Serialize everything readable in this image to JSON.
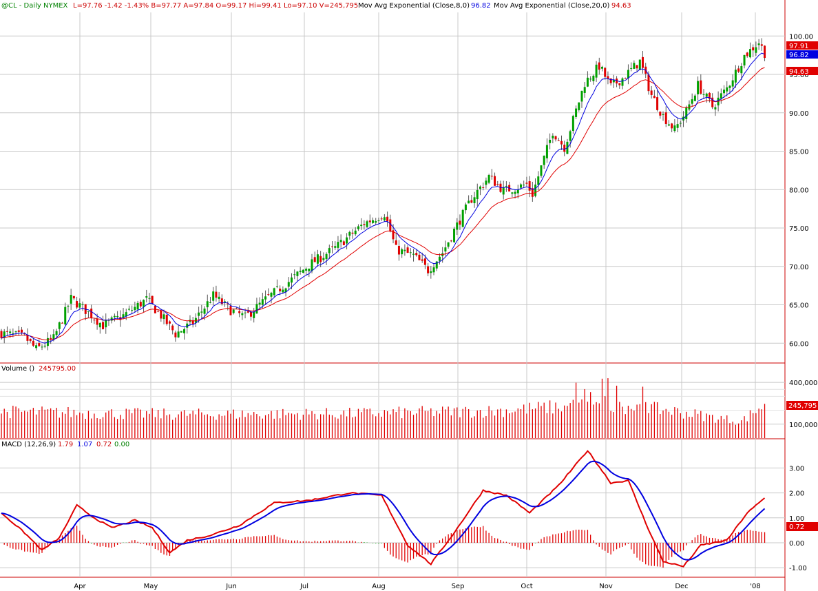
{
  "header": {
    "symbol": "@CL - Daily  NYMEX",
    "stats": "L=97.76  -1.42  -1.43%  B=97.77  A=97.84  O=99.17  Hi=99.41  Lo=97.10  V=245,795",
    "ema8_label": "Mov Avg Exponential (Close,8,0)",
    "ema8_value": "96.82",
    "ema20_label": "Mov Avg Exponential (Close,20,0)",
    "ema20_value": "94.63"
  },
  "volume_panel": {
    "label": "Volume ()",
    "value": "245795.00",
    "badge": "245,795"
  },
  "macd_panel": {
    "label": "MACD (12,26,9)",
    "values": [
      "1.79",
      "1.07",
      "0.72",
      "0.00"
    ],
    "badge": "0.72"
  },
  "price_badges": [
    "97.91",
    "96.82",
    "94.63"
  ],
  "colors": {
    "up": "#00a000",
    "down": "#e00000",
    "ema8": "#0000e0",
    "ema20": "#e00000",
    "grid": "#c8c8c8",
    "axis": "#cc0000",
    "text_green": "#008000"
  },
  "chart_data": {
    "type": "candlestick",
    "x_ticks": [
      "Apr",
      "May",
      "Jun",
      "Jul",
      "Aug",
      "Sep",
      "Oct",
      "Nov",
      "Dec",
      "'08"
    ],
    "price_axis": {
      "ticks": [
        "60.00",
        "65.00",
        "70.00",
        "75.00",
        "80.00",
        "85.00",
        "90.00",
        "95.00",
        "100.00"
      ],
      "range": [
        58.5,
        102.0
      ]
    },
    "volume_axis": {
      "ticks": [
        "100,000",
        "245,795",
        "400,000"
      ],
      "range": [
        0,
        450000
      ]
    },
    "macd_axis": {
      "ticks": [
        "-1.00",
        "0.00",
        "1.00",
        "2.00",
        "3.00"
      ],
      "range": [
        -1.3,
        3.9
      ]
    },
    "price_keyframes": [
      [
        0,
        61.3
      ],
      [
        8,
        60.8
      ],
      [
        12,
        59.2
      ],
      [
        18,
        60.6
      ],
      [
        24,
        65.8
      ],
      [
        30,
        64.0
      ],
      [
        35,
        62.3
      ],
      [
        42,
        63.6
      ],
      [
        50,
        65.7
      ],
      [
        55,
        63.6
      ],
      [
        60,
        61.2
      ],
      [
        66,
        62.7
      ],
      [
        73,
        66.2
      ],
      [
        79,
        64.3
      ],
      [
        84,
        63.4
      ],
      [
        92,
        66.0
      ],
      [
        100,
        68.3
      ],
      [
        106,
        70.2
      ],
      [
        115,
        72.4
      ],
      [
        125,
        75.6
      ],
      [
        132,
        76.9
      ],
      [
        136,
        72.2
      ],
      [
        142,
        71.4
      ],
      [
        147,
        69.5
      ],
      [
        152,
        71.8
      ],
      [
        156,
        74.7
      ],
      [
        162,
        78.8
      ],
      [
        168,
        81.7
      ],
      [
        173,
        79.9
      ],
      [
        177,
        80.2
      ],
      [
        181,
        80.7
      ],
      [
        183,
        79.4
      ],
      [
        190,
        87.6
      ],
      [
        194,
        85.5
      ],
      [
        201,
        93.9
      ],
      [
        206,
        96.1
      ],
      [
        210,
        93.4
      ],
      [
        214,
        94.5
      ],
      [
        220,
        96.7
      ],
      [
        224,
        92.3
      ],
      [
        228,
        89.6
      ],
      [
        232,
        87.8
      ],
      [
        236,
        90.2
      ],
      [
        240,
        93.6
      ],
      [
        245,
        90.8
      ],
      [
        250,
        93.2
      ],
      [
        256,
        97.4
      ],
      [
        261,
        99.2
      ],
      [
        263,
        97.8
      ]
    ],
    "volume_bands": [
      [
        0,
        190000
      ],
      [
        60,
        170000
      ],
      [
        120,
        175000
      ],
      [
        170,
        195000
      ],
      [
        205,
        240000
      ],
      [
        230,
        200000
      ],
      [
        245,
        150000
      ],
      [
        255,
        120000
      ],
      [
        263,
        245795
      ]
    ],
    "macd_keyframes": [
      [
        0,
        1.2
      ],
      [
        8,
        0.4
      ],
      [
        14,
        -0.3
      ],
      [
        20,
        0.2
      ],
      [
        26,
        1.5
      ],
      [
        32,
        1.0
      ],
      [
        38,
        0.6
      ],
      [
        46,
        0.9
      ],
      [
        52,
        0.6
      ],
      [
        58,
        -0.4
      ],
      [
        64,
        0.1
      ],
      [
        72,
        0.3
      ],
      [
        82,
        0.7
      ],
      [
        94,
        1.6
      ],
      [
        106,
        1.7
      ],
      [
        120,
        2.0
      ],
      [
        131,
        1.9
      ],
      [
        140,
        -0.1
      ],
      [
        148,
        -0.85
      ],
      [
        156,
        0.4
      ],
      [
        166,
        2.1
      ],
      [
        174,
        1.9
      ],
      [
        182,
        1.2
      ],
      [
        192,
        2.3
      ],
      [
        202,
        3.7
      ],
      [
        210,
        2.4
      ],
      [
        216,
        2.5
      ],
      [
        222,
        0.8
      ],
      [
        228,
        -0.75
      ],
      [
        235,
        -0.95
      ],
      [
        241,
        -0.1
      ],
      [
        250,
        0.1
      ],
      [
        257,
        1.2
      ],
      [
        263,
        1.79
      ]
    ]
  }
}
